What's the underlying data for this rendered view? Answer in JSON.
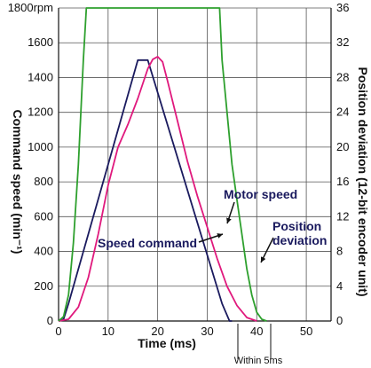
{
  "chart_data": {
    "type": "line",
    "xlabel": "Time (ms)",
    "y_left_label": "Command speed (min⁻¹)",
    "y_right_label": "Position deviation (12-bit encoder unit)",
    "xlim": [
      0,
      55
    ],
    "y_left_lim": [
      0,
      1800
    ],
    "y_right_lim": [
      0,
      36
    ],
    "x_ticks": [
      0,
      10,
      20,
      30,
      40,
      50
    ],
    "x_tick_labels": [
      "0",
      "10",
      "20",
      "30",
      "40",
      "50"
    ],
    "y_left_ticks": [
      0,
      200,
      400,
      600,
      800,
      1000,
      1200,
      1400,
      1600,
      1800
    ],
    "y_left_tick_labels": [
      "0",
      "200",
      "400",
      "600",
      "800",
      "1000",
      "1200",
      "1400",
      "1600",
      "1800rpm"
    ],
    "y_right_ticks": [
      0,
      4,
      8,
      12,
      16,
      20,
      24,
      28,
      32,
      36
    ],
    "y_right_tick_labels": [
      "0",
      "4",
      "8",
      "12",
      "16",
      "20",
      "24",
      "28",
      "32",
      "36"
    ],
    "grid": true,
    "series": [
      {
        "name": "Speed command",
        "axis": "left",
        "color": "#1a1a5e",
        "x": [
          0,
          1,
          2,
          16,
          18,
          33,
          34.5,
          35
        ],
        "y": [
          0,
          10,
          100,
          1500,
          1500,
          100,
          0,
          0
        ]
      },
      {
        "name": "Motor speed",
        "axis": "left",
        "color": "#e0197d",
        "x": [
          0,
          2,
          4,
          6,
          8,
          10,
          12,
          14,
          16,
          18,
          19,
          20,
          21,
          22,
          24,
          26,
          28,
          30,
          32,
          34,
          36,
          38,
          40
        ],
        "y": [
          0,
          10,
          80,
          250,
          500,
          780,
          1000,
          1130,
          1280,
          1450,
          1505,
          1520,
          1490,
          1380,
          1150,
          920,
          720,
          540,
          360,
          200,
          90,
          20,
          0
        ]
      },
      {
        "name": "Position deviation",
        "axis": "right",
        "color": "#2ea02e",
        "x": [
          0,
          1,
          2,
          3,
          4,
          4.5,
          5,
          5.6,
          32.5,
          33,
          34,
          35,
          36,
          37,
          38,
          39,
          40,
          41,
          42
        ],
        "y": [
          0,
          0.5,
          3,
          9,
          18,
          24,
          30,
          36,
          36,
          30,
          24,
          18,
          14,
          10,
          6,
          3,
          1,
          0.2,
          0
        ]
      }
    ],
    "annotations": {
      "motor_speed_label": "Motor speed",
      "speed_command_label": "Speed command",
      "position_deviation_label_1": "Position",
      "position_deviation_label_2": "deviation",
      "within_label": "Within 5ms"
    }
  }
}
